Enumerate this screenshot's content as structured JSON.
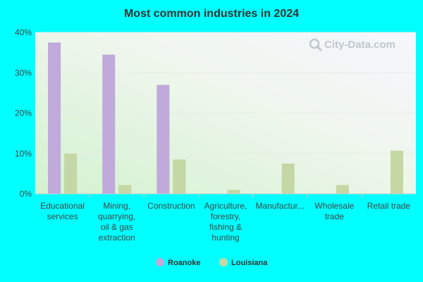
{
  "chart_data": {
    "type": "bar",
    "title": "Most common industries in 2024",
    "categories": [
      [
        "Educational",
        "services"
      ],
      [
        "Mining,",
        "quarrying,",
        "oil & gas",
        "extraction"
      ],
      [
        "Construction"
      ],
      [
        "Agriculture,",
        "forestry,",
        "fishing &",
        "hunting"
      ],
      [
        "Manufactur..."
      ],
      [
        "Wholesale",
        "trade"
      ],
      [
        "Retail trade"
      ]
    ],
    "series": [
      {
        "name": "Roanoke",
        "color": "#c0a9db",
        "values": [
          37.5,
          34.5,
          27.0,
          0,
          0,
          0,
          0
        ]
      },
      {
        "name": "Louisiana",
        "color": "#c4d7a4",
        "values": [
          10.0,
          2.2,
          8.5,
          1.0,
          7.5,
          2.2,
          10.7
        ]
      }
    ],
    "yticks": [
      "0%",
      "10%",
      "20%",
      "30%",
      "40%"
    ],
    "ylim": [
      0,
      40
    ],
    "legend_position": "bottom",
    "grid": true
  },
  "watermark": {
    "text": "City-Data.com",
    "icon": "magnifier-icon"
  }
}
